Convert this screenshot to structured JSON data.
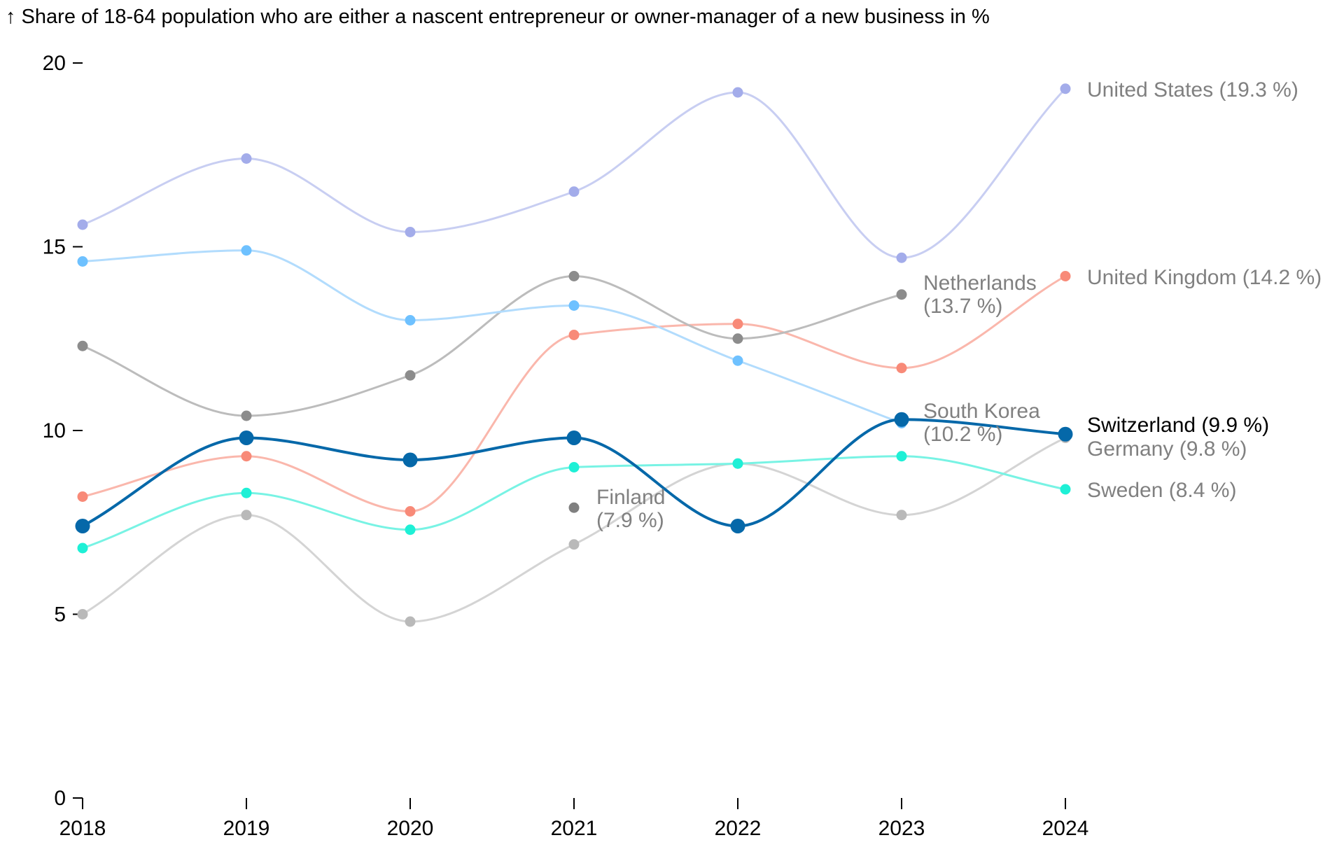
{
  "chart_data": {
    "type": "line",
    "title": "↑ Share of 18-64 population who are either a nascent entrepreneur or owner-manager of a new business in %",
    "xlabel": "",
    "ylabel": "",
    "x": [
      2018,
      2019,
      2020,
      2021,
      2022,
      2023,
      2024
    ],
    "x_tick_labels": [
      "2018",
      "2019",
      "2020",
      "2021",
      "2022",
      "2023",
      "2024"
    ],
    "y_ticks": [
      0,
      5,
      10,
      15,
      20
    ],
    "y_tick_labels": [
      "0",
      "5",
      "10",
      "15",
      "20"
    ],
    "ylim": [
      0,
      20
    ],
    "grid": false,
    "legend": "inline labels at line ends",
    "series": [
      {
        "name": "United States",
        "label_lines": [
          "United States (19.3 %)"
        ],
        "color": "#a3acea",
        "line_color": "#c8cef2",
        "highlight": false,
        "values": [
          15.6,
          17.4,
          15.4,
          16.5,
          19.2,
          14.7,
          19.3
        ]
      },
      {
        "name": "United Kingdom",
        "label_lines": [
          "United Kingdom (14.2 %)"
        ],
        "color": "#f88a78",
        "line_color": "#fab7ac",
        "highlight": false,
        "values": [
          8.2,
          9.3,
          7.8,
          12.6,
          12.9,
          11.7,
          14.2
        ]
      },
      {
        "name": "Netherlands",
        "label_lines": [
          "Netherlands",
          "(13.7 %)"
        ],
        "color": "#8c8c8c",
        "line_color": "#bcbcbc",
        "highlight": false,
        "values": [
          12.3,
          10.4,
          11.5,
          14.2,
          12.5,
          13.7,
          null
        ]
      },
      {
        "name": "South Korea",
        "label_lines": [
          "South Korea",
          "(10.2 %)"
        ],
        "color": "#6ec1ff",
        "line_color": "#b2dcfd",
        "highlight": false,
        "values": [
          14.6,
          14.9,
          13.0,
          13.4,
          11.9,
          10.2,
          null
        ]
      },
      {
        "name": "Switzerland",
        "label_lines": [
          "Switzerland (9.9 %)"
        ],
        "color": "#0568a9",
        "line_color": "#0568a9",
        "highlight": true,
        "values": [
          7.4,
          9.8,
          9.2,
          9.8,
          7.4,
          10.3,
          9.9
        ]
      },
      {
        "name": "Germany",
        "label_lines": [
          "Germany (9.8 %)"
        ],
        "color": "#b9b9b9",
        "line_color": "#d4d4d4",
        "highlight": false,
        "values": [
          5.0,
          7.7,
          4.8,
          6.9,
          9.1,
          7.7,
          9.8
        ]
      },
      {
        "name": "Sweden",
        "label_lines": [
          "Sweden (8.4 %)"
        ],
        "color": "#1ef0d6",
        "line_color": "#78f3e4",
        "highlight": false,
        "values": [
          6.8,
          8.3,
          7.3,
          9.0,
          9.1,
          9.3,
          8.4
        ]
      },
      {
        "name": "Finland",
        "label_lines": [
          "Finland",
          "(7.9 %)"
        ],
        "color": "#808080",
        "line_color": "#bcbcbc",
        "highlight": false,
        "values": [
          null,
          null,
          null,
          7.9,
          null,
          null,
          null
        ]
      }
    ]
  }
}
